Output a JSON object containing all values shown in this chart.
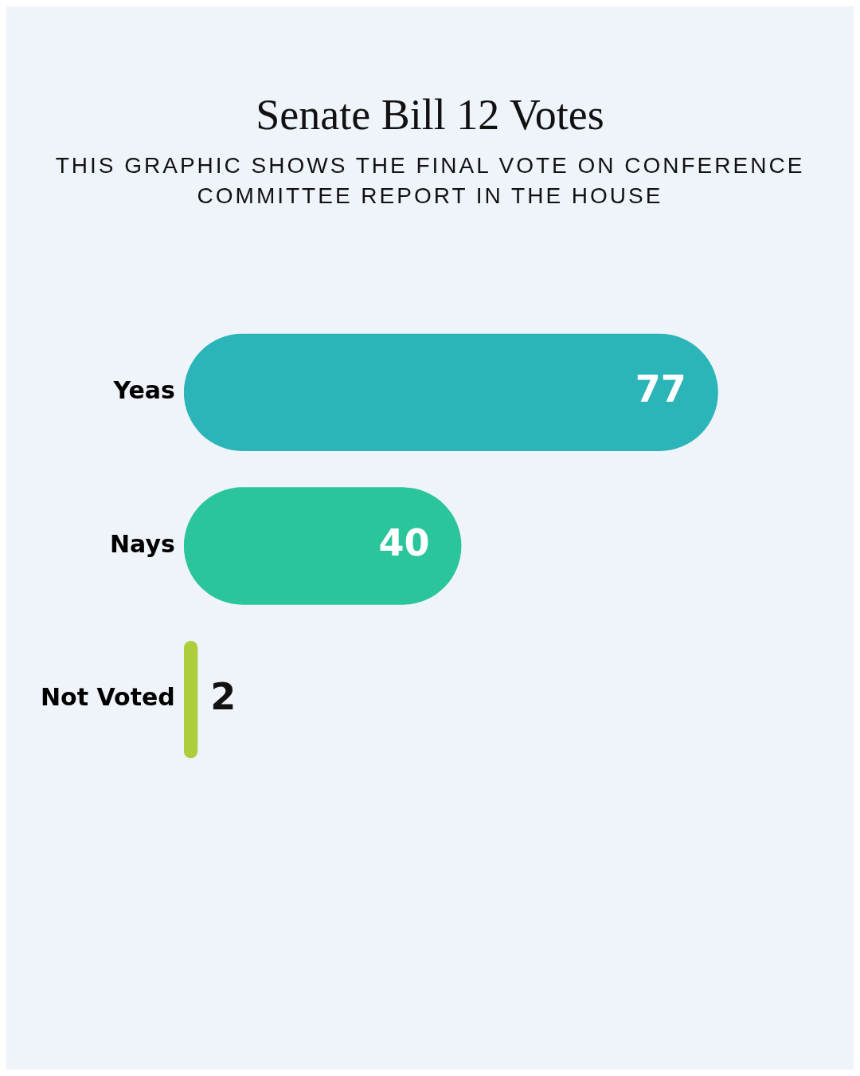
{
  "chart_data": {
    "type": "bar",
    "orientation": "horizontal",
    "title": "Senate Bill 12 Votes",
    "subtitle": "THIS GRAPHIC SHOWS THE FINAL VOTE ON CONFERENCE COMMITTEE REPORT IN THE HOUSE",
    "categories": [
      "Yeas",
      "Nays",
      "Not Voted"
    ],
    "values": [
      77,
      40,
      2
    ],
    "colors": [
      "#2bb5b8",
      "#2ac59b",
      "#aecd3a"
    ],
    "data_labels": true,
    "legend": false
  }
}
